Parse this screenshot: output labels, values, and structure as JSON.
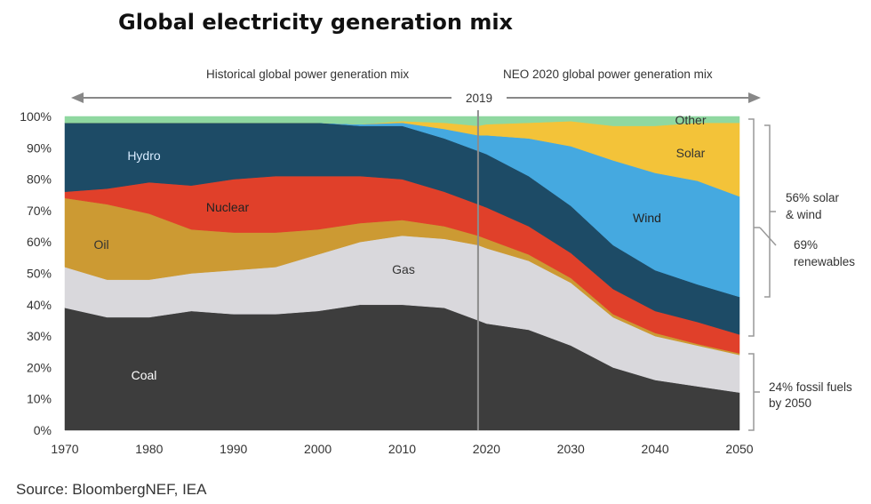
{
  "chart_data": {
    "type": "area",
    "title": "Global electricity generation mix",
    "source": "Source: BloombergNEF, IEA",
    "historical_label": "Historical global power generation mix",
    "forecast_label": "NEO 2020  global power generation mix",
    "divider_label": "2019",
    "divider_year": 2019,
    "xlim": [
      1970,
      2050
    ],
    "ylim": [
      0,
      100
    ],
    "x_ticks": [
      "1970",
      "1980",
      "1990",
      "2000",
      "2010",
      "2020",
      "2030",
      "2040",
      "2050"
    ],
    "y_ticks": [
      "0%",
      "10%",
      "20%",
      "30%",
      "40%",
      "50%",
      "60%",
      "70%",
      "80%",
      "90%",
      "100%"
    ],
    "stacking": "cumulative percent share, bottom to top",
    "x": [
      1970,
      1975,
      1980,
      1985,
      1990,
      1995,
      2000,
      2005,
      2010,
      2015,
      2019,
      2020,
      2025,
      2030,
      2035,
      2040,
      2045,
      2050
    ],
    "series": [
      {
        "name": "Coal",
        "color": "#3d3d3d",
        "values": [
          39,
          36,
          36,
          38,
          37,
          37,
          38,
          40,
          40,
          39,
          35,
          34,
          32,
          27,
          20,
          16,
          14,
          12
        ]
      },
      {
        "name": "Gas",
        "color": "#d9d8dc",
        "values": [
          13,
          12,
          12,
          12,
          14,
          15,
          18,
          20,
          22,
          22,
          24,
          24,
          22,
          20,
          16,
          14,
          13,
          12
        ]
      },
      {
        "name": "Oil",
        "color": "#cc9a33",
        "values": [
          22,
          24,
          21,
          14,
          12,
          11,
          8,
          6,
          5,
          4,
          3,
          3,
          2,
          1.5,
          1,
          1,
          0.5,
          0.5
        ]
      },
      {
        "name": "Nuclear",
        "color": "#e0402a",
        "values": [
          2,
          5,
          10,
          14,
          17,
          18,
          17,
          15,
          13,
          11,
          10,
          10,
          9,
          8,
          8,
          7,
          7,
          6
        ]
      },
      {
        "name": "Hydro",
        "color": "#1d4b66",
        "values": [
          22,
          21,
          19,
          20,
          18,
          17,
          17,
          16,
          17,
          17,
          17,
          17,
          16,
          15,
          14,
          13,
          12,
          12
        ]
      },
      {
        "name": "Wind",
        "color": "#45a9e0",
        "values": [
          0,
          0,
          0,
          0,
          0,
          0,
          0,
          0.5,
          1,
          3,
          5,
          6,
          12,
          19,
          27,
          31,
          33,
          32
        ]
      },
      {
        "name": "Solar",
        "color": "#f3c339",
        "values": [
          0,
          0,
          0,
          0,
          0,
          0,
          0,
          0,
          0.5,
          2,
          3,
          3.5,
          5,
          8,
          11,
          15,
          18.5,
          23.5
        ]
      },
      {
        "name": "Other",
        "color": "#8fd8a0",
        "values": [
          2,
          2,
          2,
          2,
          2,
          2,
          2,
          2.5,
          1.5,
          2,
          3,
          2.5,
          2,
          1.5,
          3,
          3,
          2,
          2
        ]
      }
    ],
    "annotations": {
      "solar_wind": [
        "56% solar",
        "& wind"
      ],
      "renewables": [
        "69%",
        "renewables"
      ],
      "fossil": [
        "24% fossil fuels",
        "by 2050"
      ]
    }
  }
}
